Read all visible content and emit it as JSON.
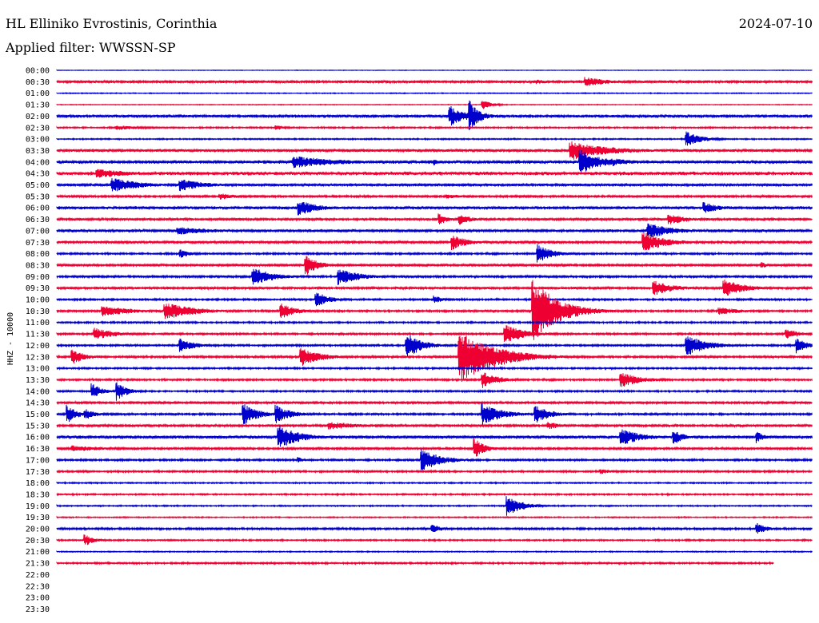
{
  "header": {
    "station": "HL Elliniko Evrostinis, Corinthia",
    "date": "2024-07-10",
    "filter_label": "Applied filter: WWSSN-SP"
  },
  "colors": {
    "even_trace": "#0000cc",
    "odd_trace": "#ee0033",
    "background": "#ffffff",
    "text": "#000000"
  },
  "chart_data": {
    "type": "line",
    "title": "",
    "ylabel": "HHZ - 10000",
    "xlabel": "",
    "row_labels": [
      "00:00",
      "00:30",
      "01:00",
      "01:30",
      "02:00",
      "02:30",
      "03:00",
      "03:30",
      "04:00",
      "04:30",
      "05:00",
      "05:30",
      "06:00",
      "06:30",
      "07:00",
      "07:30",
      "08:00",
      "08:30",
      "09:00",
      "09:30",
      "10:00",
      "10:30",
      "11:00",
      "11:30",
      "12:00",
      "12:30",
      "13:00",
      "13:30",
      "14:00",
      "14:30",
      "15:00",
      "15:30",
      "16:00",
      "16:30",
      "17:00",
      "17:30",
      "18:00",
      "18:30",
      "19:00",
      "19:30",
      "20:00",
      "20:30",
      "21:00",
      "21:30",
      "22:00",
      "22:30",
      "23:00",
      "23:30"
    ],
    "minutes_per_line": 30,
    "recorded_until_minute": 28.5,
    "line_colors": [
      "blue",
      "red"
    ],
    "noise_level": [
      0.3,
      1.4,
      0.5,
      0.4,
      1.6,
      0.8,
      0.7,
      1.6,
      1.8,
      2.0,
      1.4,
      1.2,
      1.6,
      1.3,
      1.5,
      1.5,
      1.0,
      1.4,
      1.2,
      1.3,
      1.0,
      1.1,
      0.9,
      1.0,
      1.0,
      1.2,
      0.9,
      1.0,
      0.9,
      1.3,
      1.1,
      1.3,
      1.6,
      1.2,
      1.0,
      1.0,
      0.7,
      0.8,
      0.7,
      0.6,
      1.1,
      0.8,
      0.6,
      0.9,
      0,
      0,
      0,
      0
    ],
    "events": [
      {
        "line": 1,
        "minute": 21.0,
        "amplitude": 6,
        "duration": 1.0
      },
      {
        "line": 1,
        "minute": 19.0,
        "amplitude": 3,
        "duration": 0.8
      },
      {
        "line": 3,
        "minute": 16.9,
        "amplitude": 6,
        "duration": 0.4
      },
      {
        "line": 4,
        "minute": 15.6,
        "amplitude": 14,
        "duration": 0.6
      },
      {
        "line": 4,
        "minute": 16.4,
        "amplitude": 20,
        "duration": 0.4
      },
      {
        "line": 5,
        "minute": 8.7,
        "amplitude": 4,
        "duration": 0.3
      },
      {
        "line": 5,
        "minute": 2.4,
        "amplitude": 3,
        "duration": 1.2
      },
      {
        "line": 6,
        "minute": 25.0,
        "amplitude": 10,
        "duration": 0.6
      },
      {
        "line": 7,
        "minute": 20.4,
        "amplitude": 13,
        "duration": 1.2
      },
      {
        "line": 7,
        "minute": 21.5,
        "amplitude": 6,
        "duration": 1.6
      },
      {
        "line": 8,
        "minute": 9.4,
        "amplitude": 8,
        "duration": 1.8
      },
      {
        "line": 8,
        "minute": 15.0,
        "amplitude": 5,
        "duration": 0.2
      },
      {
        "line": 8,
        "minute": 20.8,
        "amplitude": 16,
        "duration": 0.8
      },
      {
        "line": 8,
        "minute": 22.0,
        "amplitude": 6,
        "duration": 0.8
      },
      {
        "line": 9,
        "minute": 1.6,
        "amplitude": 6,
        "duration": 1.4
      },
      {
        "line": 10,
        "minute": 2.2,
        "amplitude": 9,
        "duration": 1.2
      },
      {
        "line": 10,
        "minute": 4.9,
        "amplitude": 8,
        "duration": 1.0
      },
      {
        "line": 11,
        "minute": 6.5,
        "amplitude": 4,
        "duration": 0.8
      },
      {
        "line": 11,
        "minute": 15.5,
        "amplitude": 3,
        "duration": 0.8
      },
      {
        "line": 12,
        "minute": 9.6,
        "amplitude": 10,
        "duration": 0.8
      },
      {
        "line": 12,
        "minute": 25.7,
        "amplitude": 8,
        "duration": 0.6
      },
      {
        "line": 13,
        "minute": 15.2,
        "amplitude": 8,
        "duration": 0.3
      },
      {
        "line": 13,
        "minute": 16.0,
        "amplitude": 7,
        "duration": 0.5
      },
      {
        "line": 13,
        "minute": 24.3,
        "amplitude": 7,
        "duration": 0.8
      },
      {
        "line": 14,
        "minute": 4.8,
        "amplitude": 5,
        "duration": 1.6
      },
      {
        "line": 14,
        "minute": 23.5,
        "amplitude": 10,
        "duration": 1.0
      },
      {
        "line": 15,
        "minute": 15.7,
        "amplitude": 10,
        "duration": 0.6
      },
      {
        "line": 15,
        "minute": 23.3,
        "amplitude": 13,
        "duration": 0.9
      },
      {
        "line": 16,
        "minute": 4.9,
        "amplitude": 6,
        "duration": 0.4
      },
      {
        "line": 16,
        "minute": 19.1,
        "amplitude": 12,
        "duration": 0.6
      },
      {
        "line": 17,
        "minute": 9.9,
        "amplitude": 13,
        "duration": 0.5
      },
      {
        "line": 17,
        "minute": 28.0,
        "amplitude": 4,
        "duration": 0.3
      },
      {
        "line": 18,
        "minute": 7.8,
        "amplitude": 12,
        "duration": 0.8
      },
      {
        "line": 18,
        "minute": 11.2,
        "amplitude": 11,
        "duration": 0.8
      },
      {
        "line": 19,
        "minute": 23.7,
        "amplitude": 10,
        "duration": 0.8
      },
      {
        "line": 19,
        "minute": 26.5,
        "amplitude": 12,
        "duration": 0.8
      },
      {
        "line": 20,
        "minute": 10.3,
        "amplitude": 11,
        "duration": 0.5
      },
      {
        "line": 20,
        "minute": 15.0,
        "amplitude": 5,
        "duration": 0.4
      },
      {
        "line": 21,
        "minute": 1.8,
        "amplitude": 7,
        "duration": 1.2
      },
      {
        "line": 21,
        "minute": 4.3,
        "amplitude": 11,
        "duration": 1.2
      },
      {
        "line": 21,
        "minute": 8.9,
        "amplitude": 10,
        "duration": 0.6
      },
      {
        "line": 21,
        "minute": 18.9,
        "amplitude": 42,
        "duration": 1.0
      },
      {
        "line": 21,
        "minute": 26.3,
        "amplitude": 5,
        "duration": 1.0
      },
      {
        "line": 23,
        "minute": 1.5,
        "amplitude": 8,
        "duration": 0.8
      },
      {
        "line": 23,
        "minute": 17.8,
        "amplitude": 13,
        "duration": 0.8
      },
      {
        "line": 23,
        "minute": 29.0,
        "amplitude": 6,
        "duration": 0.6
      },
      {
        "line": 24,
        "minute": 4.9,
        "amplitude": 9,
        "duration": 0.6
      },
      {
        "line": 24,
        "minute": 13.9,
        "amplitude": 17,
        "duration": 0.6
      },
      {
        "line": 24,
        "minute": 25.0,
        "amplitude": 14,
        "duration": 0.8
      },
      {
        "line": 24,
        "minute": 29.4,
        "amplitude": 10,
        "duration": 0.4
      },
      {
        "line": 25,
        "minute": 0.6,
        "amplitude": 10,
        "duration": 0.5
      },
      {
        "line": 25,
        "minute": 9.7,
        "amplitude": 12,
        "duration": 0.8
      },
      {
        "line": 25,
        "minute": 16.0,
        "amplitude": 34,
        "duration": 1.4
      },
      {
        "line": 27,
        "minute": 16.9,
        "amplitude": 11,
        "duration": 0.6
      },
      {
        "line": 27,
        "minute": 22.4,
        "amplitude": 10,
        "duration": 0.8
      },
      {
        "line": 28,
        "minute": 1.4,
        "amplitude": 10,
        "duration": 0.4
      },
      {
        "line": 28,
        "minute": 2.4,
        "amplitude": 12,
        "duration": 0.4
      },
      {
        "line": 30,
        "minute": 0.4,
        "amplitude": 12,
        "duration": 0.4
      },
      {
        "line": 30,
        "minute": 1.1,
        "amplitude": 8,
        "duration": 0.4
      },
      {
        "line": 30,
        "minute": 7.4,
        "amplitude": 14,
        "duration": 0.6
      },
      {
        "line": 30,
        "minute": 8.7,
        "amplitude": 12,
        "duration": 0.6
      },
      {
        "line": 30,
        "minute": 16.9,
        "amplitude": 14,
        "duration": 0.8
      },
      {
        "line": 30,
        "minute": 19.0,
        "amplitude": 12,
        "duration": 0.6
      },
      {
        "line": 31,
        "minute": 10.8,
        "amplitude": 5,
        "duration": 1.4
      },
      {
        "line": 31,
        "minute": 19.5,
        "amplitude": 5,
        "duration": 0.6
      },
      {
        "line": 32,
        "minute": 8.8,
        "amplitude": 16,
        "duration": 0.8
      },
      {
        "line": 32,
        "minute": 22.4,
        "amplitude": 12,
        "duration": 0.8
      },
      {
        "line": 32,
        "minute": 24.5,
        "amplitude": 10,
        "duration": 0.4
      },
      {
        "line": 32,
        "minute": 27.8,
        "amplitude": 8,
        "duration": 0.3
      },
      {
        "line": 33,
        "minute": 0.6,
        "amplitude": 4,
        "duration": 1.4
      },
      {
        "line": 33,
        "minute": 16.6,
        "amplitude": 14,
        "duration": 0.4
      },
      {
        "line": 34,
        "minute": 14.5,
        "amplitude": 14,
        "duration": 0.8
      },
      {
        "line": 34,
        "minute": 9.6,
        "amplitude": 4,
        "duration": 0.2
      },
      {
        "line": 35,
        "minute": 21.6,
        "amplitude": 3,
        "duration": 0.8
      },
      {
        "line": 38,
        "minute": 17.9,
        "amplitude": 13,
        "duration": 0.6
      },
      {
        "line": 40,
        "minute": 14.9,
        "amplitude": 6,
        "duration": 0.4
      },
      {
        "line": 40,
        "minute": 27.8,
        "amplitude": 8,
        "duration": 0.4
      },
      {
        "line": 41,
        "minute": 1.1,
        "amplitude": 8,
        "duration": 0.4
      }
    ]
  }
}
